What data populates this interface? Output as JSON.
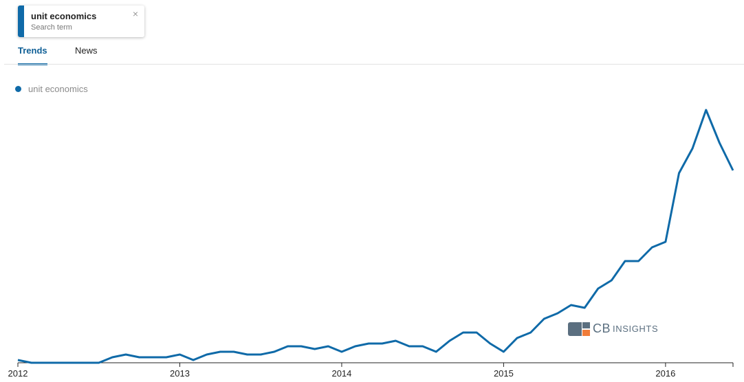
{
  "search_chip": {
    "title": "unit economics",
    "subtitle": "Search term",
    "close_glyph": "×"
  },
  "tabs": [
    {
      "label": "Trends",
      "active": true
    },
    {
      "label": "News",
      "active": false
    }
  ],
  "logo": {
    "brand": "CB",
    "suffix": "INSIGHTS"
  },
  "colors": {
    "accent": "#0f6aa8",
    "logo_gray": "#5b6f80",
    "logo_orange": "#f07c3a"
  },
  "chart_data": {
    "type": "line",
    "title": "",
    "xlabel": "",
    "ylabel": "",
    "x_ticks": [
      "2012",
      "2013",
      "2014",
      "2015",
      "2016"
    ],
    "xlim": [
      "2012-01",
      "2016-06"
    ],
    "ylim": [
      0,
      100
    ],
    "y_axis_visible": false,
    "grid": false,
    "legend_position": "top-left",
    "series": [
      {
        "name": "unit economics",
        "color": "#0f6aa8",
        "x": [
          "2012-01",
          "2012-02",
          "2012-03",
          "2012-04",
          "2012-05",
          "2012-06",
          "2012-07",
          "2012-08",
          "2012-09",
          "2012-10",
          "2012-11",
          "2012-12",
          "2013-01",
          "2013-02",
          "2013-03",
          "2013-04",
          "2013-05",
          "2013-06",
          "2013-07",
          "2013-08",
          "2013-09",
          "2013-10",
          "2013-11",
          "2013-12",
          "2014-01",
          "2014-02",
          "2014-03",
          "2014-04",
          "2014-05",
          "2014-06",
          "2014-07",
          "2014-08",
          "2014-09",
          "2014-10",
          "2014-11",
          "2014-12",
          "2015-01",
          "2015-02",
          "2015-03",
          "2015-04",
          "2015-05",
          "2015-06",
          "2015-07",
          "2015-08",
          "2015-09",
          "2015-10",
          "2015-11",
          "2015-12",
          "2016-01",
          "2016-02",
          "2016-03",
          "2016-04",
          "2016-05",
          "2016-06"
        ],
        "values": [
          1,
          0,
          0,
          0,
          0,
          0,
          0,
          2,
          3,
          2,
          2,
          2,
          3,
          1,
          3,
          4,
          4,
          3,
          3,
          4,
          6,
          6,
          5,
          6,
          4,
          6,
          7,
          7,
          8,
          6,
          6,
          4,
          8,
          11,
          11,
          7,
          4,
          9,
          11,
          16,
          18,
          21,
          20,
          27,
          30,
          37,
          37,
          42,
          44,
          69,
          78,
          92,
          80,
          70
        ]
      }
    ]
  }
}
